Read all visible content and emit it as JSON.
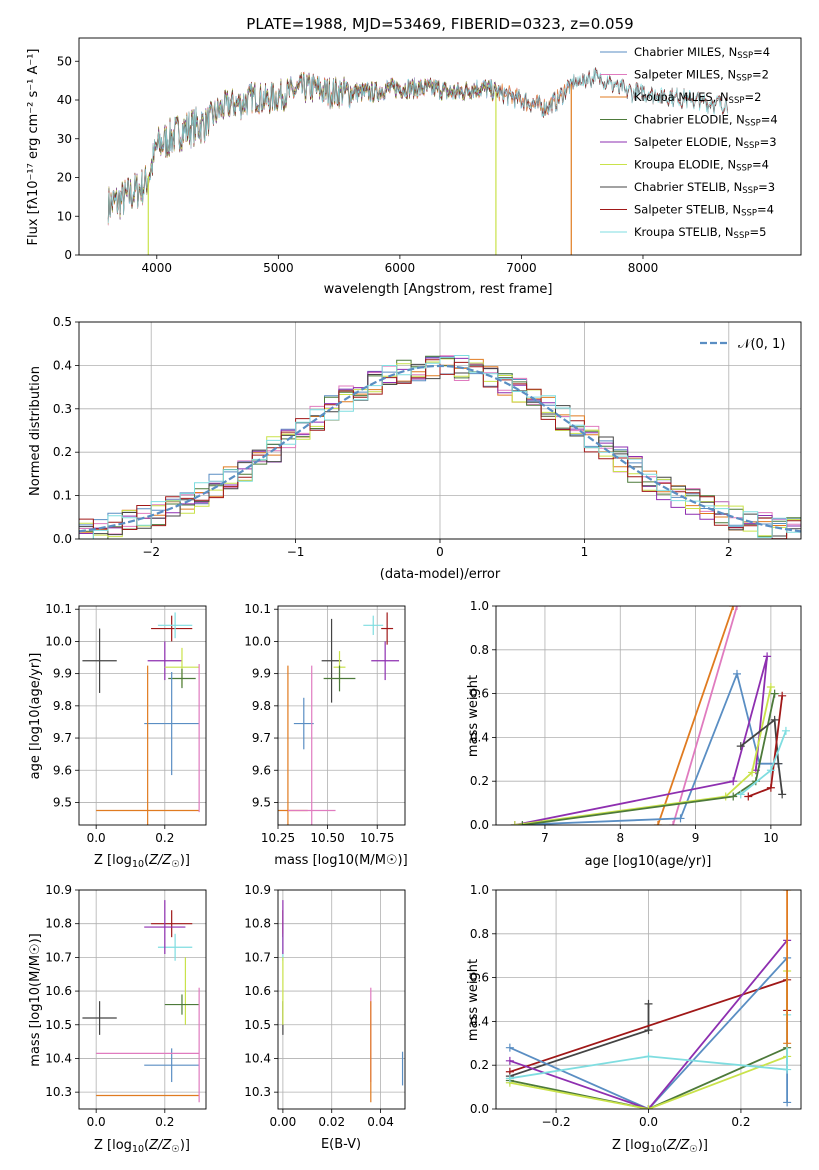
{
  "figure": {
    "title": "PLATE=1988, MJD=53469, FIBERID=0323, z=0.059"
  },
  "chart_data": [
    {
      "id": "spectrum",
      "type": "line",
      "xlabel": "wavelength [Angstrom, rest frame]",
      "ylabel": "Flux [fλ10⁻¹⁷ erg cm⁻² s⁻¹ A⁻¹]",
      "xlim": [
        3360,
        9300
      ],
      "ylim": [
        0,
        56
      ],
      "xticks": [
        4000,
        5000,
        6000,
        7000,
        8000
      ],
      "yticks": [
        0,
        10,
        20,
        30,
        40,
        50
      ],
      "continuum": [
        [
          3600,
          13
        ],
        [
          3700,
          14
        ],
        [
          3800,
          16
        ],
        [
          3900,
          18
        ],
        [
          3950,
          22
        ],
        [
          4000,
          28
        ],
        [
          4100,
          30
        ],
        [
          4200,
          32
        ],
        [
          4300,
          33
        ],
        [
          4400,
          34
        ],
        [
          4500,
          37
        ],
        [
          4600,
          39
        ],
        [
          4700,
          39
        ],
        [
          4800,
          41
        ],
        [
          4900,
          40
        ],
        [
          5000,
          41
        ],
        [
          5100,
          42
        ],
        [
          5200,
          43
        ],
        [
          5300,
          43
        ],
        [
          5400,
          42
        ],
        [
          5500,
          42
        ],
        [
          5600,
          42
        ],
        [
          5700,
          42
        ],
        [
          5800,
          42
        ],
        [
          5900,
          43
        ],
        [
          6000,
          43
        ],
        [
          6100,
          43
        ],
        [
          6200,
          43
        ],
        [
          6300,
          43
        ],
        [
          6400,
          42
        ],
        [
          6500,
          42
        ],
        [
          6600,
          43
        ],
        [
          6700,
          43
        ],
        [
          6800,
          42
        ],
        [
          6900,
          41
        ],
        [
          7000,
          40
        ],
        [
          7100,
          39
        ],
        [
          7200,
          38
        ],
        [
          7300,
          40
        ],
        [
          7400,
          44
        ],
        [
          7500,
          45
        ],
        [
          7600,
          46
        ],
        [
          7700,
          45
        ],
        [
          7800,
          43
        ],
        [
          7900,
          42
        ],
        [
          8000,
          42
        ],
        [
          8200,
          41
        ],
        [
          8400,
          40
        ],
        [
          8600,
          39
        ],
        [
          8800,
          39
        ]
      ],
      "series": [
        {
          "name": "Chabrier MILES, N_SSP=4",
          "label_text": "Chabrier MILES, N",
          "label_sub": "SSP",
          "label_val": "=4",
          "color": "#5a8ec3",
          "xmax": 7400
        },
        {
          "name": "Salpeter MILES, N_SSP=2",
          "label_text": "Salpeter MILES, N",
          "label_sub": "SSP",
          "label_val": "=2",
          "color": "#e07bbf",
          "xmax": 7400
        },
        {
          "name": "Kroupa MILES, N_SSP=2",
          "label_text": "Kroupa MILES, N",
          "label_sub": "SSP",
          "label_val": "=2",
          "color": "#e07b20",
          "xmax": 7400
        },
        {
          "name": "Chabrier ELODIE, N_SSP=4",
          "label_text": "Chabrier ELODIE, N",
          "label_sub": "SSP",
          "label_val": "=4",
          "color": "#4d7a3a",
          "xmax": 6800
        },
        {
          "name": "Salpeter ELODIE, N_SSP=3",
          "label_text": "Salpeter ELODIE, N",
          "label_sub": "SSP",
          "label_val": "=3",
          "color": "#8e2fb0",
          "xmax": 6800
        },
        {
          "name": "Kroupa ELODIE, N_SSP=4",
          "label_text": "Kroupa ELODIE, N",
          "label_sub": "SSP",
          "label_val": "=4",
          "color": "#c9e24a",
          "xmax": 6800
        },
        {
          "name": "Chabrier STELIB, N_SSP=3",
          "label_text": "Chabrier STELIB, N",
          "label_sub": "SSP",
          "label_val": "=3",
          "color": "#444444",
          "xmax": 8700
        },
        {
          "name": "Salpeter STELIB, N_SSP=4",
          "label_text": "Salpeter STELIB, N",
          "label_sub": "SSP",
          "label_val": "=4",
          "color": "#a01818",
          "xmax": 8700
        },
        {
          "name": "Kroupa STELIB, N_SSP=5",
          "label_text": "Kroupa STELIB, N",
          "label_sub": "SSP",
          "label_val": "=5",
          "color": "#7fdde0",
          "xmax": 8700
        }
      ]
    },
    {
      "id": "residuals",
      "type": "line",
      "xlabel": "(data-model)/error",
      "ylabel": "Normed distribution",
      "xlim": [
        -2.5,
        2.5
      ],
      "ylim": [
        0,
        0.5
      ],
      "xticks": [
        -2,
        -1,
        0,
        1,
        2
      ],
      "yticks": [
        0.0,
        0.1,
        0.2,
        0.3,
        0.4,
        0.5
      ],
      "gaussian_label": "𝒩(0, 1)",
      "gaussian_color": "#5a8ec3",
      "series_colors": [
        "#5a8ec3",
        "#e07bbf",
        "#e07b20",
        "#4d7a3a",
        "#8e2fb0",
        "#c9e24a",
        "#444444",
        "#a01818",
        "#7fdde0"
      ],
      "bin_width": 0.1
    },
    {
      "id": "age_vs_z",
      "type": "scatter",
      "xlabel": "Z [log10(Z/Z☉)]",
      "ylabel": "age [log10(age/yr)]",
      "xlim": [
        -0.05,
        0.32
      ],
      "ylim": [
        9.43,
        10.11
      ],
      "xticks": [
        0.0,
        0.2
      ],
      "yticks": [
        9.5,
        9.6,
        9.7,
        9.8,
        9.9,
        10.0,
        10.1
      ],
      "points": [
        {
          "color": "#444444",
          "x": 0.01,
          "xerr": 0.05,
          "y": 9.94,
          "yerr": 0.1
        },
        {
          "color": "#a01818",
          "x": 0.22,
          "xerr": 0.06,
          "y": 10.04,
          "yerr": 0.04
        },
        {
          "color": "#7fdde0",
          "x": 0.23,
          "xerr": 0.05,
          "y": 10.05,
          "yerr": 0.04
        },
        {
          "color": "#8e2fb0",
          "x": 0.2,
          "xerr": 0.05,
          "y": 9.94,
          "yerr": 0.06
        },
        {
          "color": "#c9e24a",
          "x": 0.25,
          "xerr": 0.05,
          "y": 9.92,
          "yerr": 0.06
        },
        {
          "color": "#4d7a3a",
          "x": 0.25,
          "xerr": 0.04,
          "y": 9.885,
          "yerr": 0.03
        },
        {
          "color": "#5a8ec3",
          "x": 0.22,
          "xerr": 0.08,
          "y": 9.745,
          "yerr": 0.16
        },
        {
          "color": "#e07b20",
          "x": 0.15,
          "xerr": 0.15,
          "y": 9.475,
          "yerr": 0.45
        },
        {
          "color": "#e07bbf",
          "x": 0.3,
          "xerr": 0.0,
          "y": 9.7,
          "yerr": 0.23
        }
      ]
    },
    {
      "id": "age_vs_mass",
      "type": "scatter",
      "xlabel": "mass [log10(M/M☉)]",
      "ylabel": "",
      "xlim": [
        10.25,
        10.89
      ],
      "ylim": [
        9.43,
        10.11
      ],
      "xticks": [
        10.25,
        10.5,
        10.75
      ],
      "yticks": [
        9.5,
        9.6,
        9.7,
        9.8,
        9.9,
        10.0,
        10.1
      ],
      "points": [
        {
          "color": "#444444",
          "x": 10.52,
          "xerr": 0.05,
          "y": 9.94,
          "yerr": 0.13
        },
        {
          "color": "#a01818",
          "x": 10.8,
          "xerr": 0.03,
          "y": 10.04,
          "yerr": 0.05
        },
        {
          "color": "#7fdde0",
          "x": 10.73,
          "xerr": 0.05,
          "y": 10.05,
          "yerr": 0.03
        },
        {
          "color": "#8e2fb0",
          "x": 10.79,
          "xerr": 0.07,
          "y": 9.94,
          "yerr": 0.06
        },
        {
          "color": "#c9e24a",
          "x": 10.56,
          "xerr": 0.03,
          "y": 9.92,
          "yerr": 0.05
        },
        {
          "color": "#4d7a3a",
          "x": 10.56,
          "xerr": 0.08,
          "y": 9.885,
          "yerr": 0.04
        },
        {
          "color": "#5a8ec3",
          "x": 10.38,
          "xerr": 0.05,
          "y": 9.745,
          "yerr": 0.08
        },
        {
          "color": "#e07b20",
          "x": 10.3,
          "xerr": 0.1,
          "y": 9.475,
          "yerr": 0.45
        },
        {
          "color": "#e07bbf",
          "x": 10.42,
          "xerr": 0.12,
          "y": 9.475,
          "yerr": 0.45
        }
      ]
    },
    {
      "id": "weight_vs_age",
      "type": "line",
      "xlabel": "age [log10(age/yr)]",
      "ylabel": "mass weight",
      "xlim": [
        6.35,
        10.4
      ],
      "ylim": [
        0,
        1
      ],
      "xticks": [
        7,
        8,
        9,
        10
      ],
      "yticks": [
        0.0,
        0.2,
        0.4,
        0.6,
        0.8,
        1.0
      ],
      "series": [
        {
          "color": "#e07b20",
          "points": [
            [
              8.5,
              0
            ],
            [
              9.5,
              1.0
            ]
          ]
        },
        {
          "color": "#e07bbf",
          "points": [
            [
              8.7,
              0
            ],
            [
              9.55,
              1.0
            ]
          ]
        },
        {
          "color": "#5a8ec3",
          "points": [
            [
              6.6,
              0
            ],
            [
              8.8,
              0.03
            ],
            [
              9.55,
              0.69
            ],
            [
              9.85,
              0.28
            ],
            [
              10.1,
              0.28
            ]
          ]
        },
        {
          "color": "#8e2fb0",
          "points": [
            [
              6.6,
              0
            ],
            [
              9.5,
              0.2
            ],
            [
              9.95,
              0.77
            ],
            [
              9.8,
              0.25
            ]
          ]
        },
        {
          "color": "#c9e24a",
          "points": [
            [
              6.6,
              0
            ],
            [
              9.4,
              0.13
            ],
            [
              9.75,
              0.24
            ],
            [
              10.0,
              0.63
            ]
          ]
        },
        {
          "color": "#4d7a3a",
          "points": [
            [
              6.7,
              0
            ],
            [
              9.5,
              0.13
            ],
            [
              9.8,
              0.2
            ],
            [
              10.05,
              0.6
            ]
          ]
        },
        {
          "color": "#444444",
          "points": [
            [
              9.6,
              0.36
            ],
            [
              10.05,
              0.48
            ],
            [
              10.1,
              0.28
            ],
            [
              10.15,
              0.14
            ]
          ]
        },
        {
          "color": "#a01818",
          "points": [
            [
              9.7,
              0.13
            ],
            [
              10.0,
              0.17
            ],
            [
              10.15,
              0.59
            ]
          ]
        },
        {
          "color": "#7fdde0",
          "points": [
            [
              9.6,
              0.14
            ],
            [
              10.0,
              0.25
            ],
            [
              10.2,
              0.43
            ]
          ]
        }
      ]
    },
    {
      "id": "mass_vs_z",
      "type": "scatter",
      "xlabel": "Z [log10(Z/Z☉)]",
      "ylabel": "mass [log10(M/M☉)]",
      "xlim": [
        -0.05,
        0.32
      ],
      "ylim": [
        10.25,
        10.9
      ],
      "xticks": [
        0.0,
        0.2
      ],
      "yticks": [
        10.3,
        10.4,
        10.5,
        10.6,
        10.7,
        10.8,
        10.9
      ],
      "points": [
        {
          "color": "#444444",
          "x": 0.01,
          "xerr": 0.05,
          "y": 10.52,
          "yerr": 0.05
        },
        {
          "color": "#a01818",
          "x": 0.22,
          "xerr": 0.06,
          "y": 10.8,
          "yerr": 0.04
        },
        {
          "color": "#7fdde0",
          "x": 0.23,
          "xerr": 0.05,
          "y": 10.73,
          "yerr": 0.04
        },
        {
          "color": "#8e2fb0",
          "x": 0.2,
          "xerr": 0.06,
          "y": 10.79,
          "yerr": 0.08
        },
        {
          "color": "#c9e24a",
          "x": 0.26,
          "xerr": 0.0,
          "y": 10.6,
          "yerr": 0.1
        },
        {
          "color": "#4d7a3a",
          "x": 0.25,
          "xerr": 0.05,
          "y": 10.56,
          "yerr": 0.03
        },
        {
          "color": "#5a8ec3",
          "x": 0.22,
          "xerr": 0.08,
          "y": 10.38,
          "yerr": 0.05
        },
        {
          "color": "#e07b20",
          "x": 0.15,
          "xerr": 0.15,
          "y": 10.29,
          "yerr": 0.0
        },
        {
          "color": "#e07bbf",
          "x": 0.15,
          "xerr": 0.15,
          "y": 10.415,
          "yerr": 0.0
        },
        {
          "color": "#e07bbf",
          "x": 0.3,
          "xerr": 0.0,
          "y": 10.44,
          "yerr": 0.17
        }
      ]
    },
    {
      "id": "mass_vs_ebv",
      "type": "scatter",
      "xlabel": "E(B-V)",
      "ylabel": "",
      "xlim": [
        -0.002,
        0.05
      ],
      "ylim": [
        10.25,
        10.9
      ],
      "xticks": [
        0.0,
        0.02,
        0.04
      ],
      "yticks": [
        10.3,
        10.4,
        10.5,
        10.6,
        10.7,
        10.8,
        10.9
      ],
      "points": [
        {
          "color": "#444444",
          "x": 0.0,
          "xerr": 0.0,
          "y": 10.52,
          "yerr": 0.05
        },
        {
          "color": "#a01818",
          "x": 0.0,
          "xerr": 0.0,
          "y": 10.8,
          "yerr": 0.04
        },
        {
          "color": "#7fdde0",
          "x": 0.0,
          "xerr": 0.0,
          "y": 10.73,
          "yerr": 0.04
        },
        {
          "color": "#8e2fb0",
          "x": 0.0,
          "xerr": 0.0,
          "y": 10.79,
          "yerr": 0.08
        },
        {
          "color": "#c9e24a",
          "x": 0.0,
          "xerr": 0.0,
          "y": 10.6,
          "yerr": 0.1
        },
        {
          "color": "#e07bbf",
          "x": 0.036,
          "xerr": 0.0,
          "y": 10.47,
          "yerr": 0.14
        },
        {
          "color": "#e07b20",
          "x": 0.036,
          "xerr": 0.0,
          "y": 10.42,
          "yerr": 0.15
        },
        {
          "color": "#5a8ec3",
          "x": 0.049,
          "xerr": 0.0,
          "y": 10.37,
          "yerr": 0.05
        }
      ]
    },
    {
      "id": "weight_vs_z",
      "type": "line",
      "xlabel": "Z [log10(Z/Z☉)]",
      "ylabel": "mass weight",
      "xlim": [
        -0.33,
        0.33
      ],
      "ylim": [
        0,
        1
      ],
      "xticks": [
        -0.2,
        0.0,
        0.2
      ],
      "yticks": [
        0.0,
        0.2,
        0.4,
        0.6,
        0.8,
        1.0
      ],
      "series": [
        {
          "color": "#444444",
          "points": [
            [
              -0.3,
              0.15
            ],
            [
              0.0,
              0.36
            ],
            [
              0.0,
              0.48
            ]
          ]
        },
        {
          "color": "#a01818",
          "points": [
            [
              -0.3,
              0.17
            ],
            [
              0.3,
              0.59
            ],
            [
              0.3,
              0.45
            ]
          ]
        },
        {
          "color": "#5a8ec3",
          "points": [
            [
              -0.3,
              0.28
            ],
            [
              0.0,
              0.0
            ],
            [
              0.3,
              0.69
            ],
            [
              0.3,
              0.03
            ]
          ]
        },
        {
          "color": "#8e2fb0",
          "points": [
            [
              -0.3,
              0.22
            ],
            [
              0.0,
              0.0
            ],
            [
              0.3,
              0.77
            ]
          ]
        },
        {
          "color": "#4d7a3a",
          "points": [
            [
              -0.3,
              0.13
            ],
            [
              0.0,
              0.0
            ],
            [
              0.3,
              0.28
            ]
          ]
        },
        {
          "color": "#c9e24a",
          "points": [
            [
              -0.3,
              0.12
            ],
            [
              0.0,
              0.0
            ],
            [
              0.3,
              0.24
            ],
            [
              0.3,
              0.63
            ]
          ]
        },
        {
          "color": "#7fdde0",
          "points": [
            [
              -0.3,
              0.14
            ],
            [
              0.0,
              0.24
            ],
            [
              0.3,
              0.18
            ],
            [
              0.3,
              0.43
            ]
          ]
        },
        {
          "color": "#e07b20",
          "points": [
            [
              0.3,
              0.3
            ],
            [
              0.3,
              1.0
            ]
          ]
        }
      ]
    }
  ]
}
